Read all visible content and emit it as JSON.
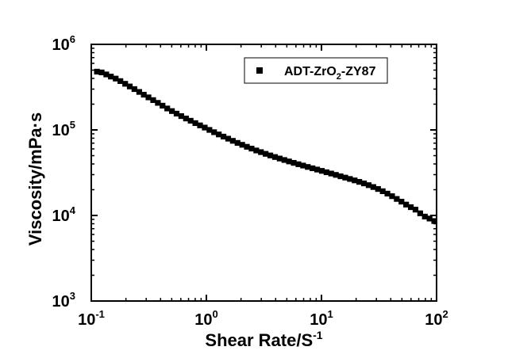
{
  "chart_data": {
    "type": "scatter",
    "title": "",
    "xlabel_main": "Shear Rate/S",
    "xlabel_sup": "-1",
    "ylabel": "Viscosity/mPa·s",
    "xscale": "log",
    "yscale": "log",
    "xlim": [
      0.1,
      100
    ],
    "ylim": [
      1000,
      1000000
    ],
    "grid": false,
    "legend_position": "top-right",
    "x_ticks": [
      {
        "base": "10",
        "exp": "-1"
      },
      {
        "base": "10",
        "exp": "0"
      },
      {
        "base": "10",
        "exp": "1"
      },
      {
        "base": "10",
        "exp": "2"
      }
    ],
    "y_ticks": [
      {
        "base": "10",
        "exp": "3"
      },
      {
        "base": "10",
        "exp": "4"
      },
      {
        "base": "10",
        "exp": "5"
      },
      {
        "base": "10",
        "exp": "6"
      }
    ],
    "series": [
      {
        "name_parts": {
          "pre": "ADT-ZrO",
          "sub": "2",
          "post": "-ZY87"
        },
        "color": "#000000",
        "marker": "square",
        "points": [
          [
            0.112,
            480000
          ],
          [
            0.123,
            470000
          ],
          [
            0.135,
            445000
          ],
          [
            0.148,
            420000
          ],
          [
            0.163,
            398000
          ],
          [
            0.179,
            372000
          ],
          [
            0.197,
            346000
          ],
          [
            0.216,
            322000
          ],
          [
            0.237,
            300000
          ],
          [
            0.261,
            278000
          ],
          [
            0.286,
            258000
          ],
          [
            0.314,
            240000
          ],
          [
            0.345,
            223000
          ],
          [
            0.379,
            207000
          ],
          [
            0.416,
            192000
          ],
          [
            0.457,
            178000
          ],
          [
            0.502,
            166000
          ],
          [
            0.551,
            155000
          ],
          [
            0.605,
            145000
          ],
          [
            0.665,
            136000
          ],
          [
            0.73,
            128000
          ],
          [
            0.802,
            120000
          ],
          [
            0.881,
            113000
          ],
          [
            0.968,
            106500
          ],
          [
            1.063,
            100000
          ],
          [
            1.167,
            94000
          ],
          [
            1.282,
            88500
          ],
          [
            1.408,
            83500
          ],
          [
            1.546,
            79000
          ],
          [
            1.698,
            74500
          ],
          [
            1.865,
            70500
          ],
          [
            2.048,
            67000
          ],
          [
            2.249,
            63500
          ],
          [
            2.47,
            60500
          ],
          [
            2.713,
            57500
          ],
          [
            2.979,
            55000
          ],
          [
            3.272,
            52500
          ],
          [
            3.593,
            50300
          ],
          [
            3.946,
            48200
          ],
          [
            4.334,
            46300
          ],
          [
            4.76,
            44500
          ],
          [
            5.227,
            42800
          ],
          [
            5.741,
            41200
          ],
          [
            6.305,
            39700
          ],
          [
            6.924,
            38300
          ],
          [
            7.604,
            36900
          ],
          [
            8.351,
            35600
          ],
          [
            9.171,
            34400
          ],
          [
            10.07,
            33200
          ],
          [
            11.06,
            32000
          ],
          [
            12.15,
            30900
          ],
          [
            13.34,
            29800
          ],
          [
            14.65,
            28700
          ],
          [
            16.09,
            27700
          ],
          [
            17.67,
            26700
          ],
          [
            19.41,
            25700
          ],
          [
            21.31,
            24700
          ],
          [
            23.41,
            23700
          ],
          [
            25.71,
            22600
          ],
          [
            28.23,
            21500
          ],
          [
            31.01,
            20400
          ],
          [
            34.05,
            19200
          ],
          [
            37.4,
            18000
          ],
          [
            41.07,
            16800
          ],
          [
            45.1,
            15600
          ],
          [
            49.53,
            14500
          ],
          [
            54.4,
            13400
          ],
          [
            59.74,
            12500
          ],
          [
            65.61,
            11700
          ],
          [
            72.05,
            10600
          ],
          [
            79.13,
            9700
          ],
          [
            86.9,
            9200
          ],
          [
            95.44,
            8600
          ]
        ]
      }
    ]
  }
}
